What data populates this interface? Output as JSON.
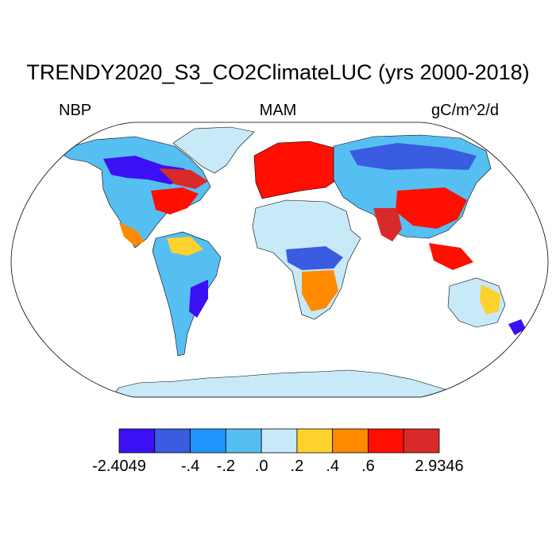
{
  "title": "TRENDY2020_S3_CO2ClimateLUC (yrs 2000-2018)",
  "variable": "NBP",
  "season": "MAM",
  "units": "gC/m^2/d",
  "colorbar": {
    "colors": [
      "#3b10f5",
      "#3a5ce0",
      "#1f96fb",
      "#55bff2",
      "#c8e9f8",
      "#fdd22c",
      "#ff8a00",
      "#ff0f00",
      "#d92a2a"
    ],
    "labels": [
      "-2.4049",
      "-.4",
      "-.2",
      ".0",
      ".2",
      ".4",
      ".6",
      "2.9346"
    ],
    "label_boundaries": [
      0,
      2,
      3,
      4,
      5,
      6,
      7,
      9
    ]
  },
  "colors": {
    "ocean": "#ffffff",
    "outline": "#000000",
    "land_base": "#c8e9f8"
  },
  "regions": [
    {
      "name": "north-america-west",
      "color": "#55bff2"
    },
    {
      "name": "canada-boreal",
      "color": "#3b10f5"
    },
    {
      "name": "us-east",
      "color": "#ff0f00"
    },
    {
      "name": "amazon",
      "color": "#55bff2"
    },
    {
      "name": "sahara",
      "color": "#c8e9f8"
    },
    {
      "name": "central-africa",
      "color": "#3a5ce0"
    },
    {
      "name": "europe",
      "color": "#ff0f00"
    },
    {
      "name": "siberia",
      "color": "#3a5ce0"
    },
    {
      "name": "east-asia",
      "color": "#ff0f00"
    },
    {
      "name": "australia",
      "color": "#c8e9f8"
    },
    {
      "name": "antarctica",
      "color": "#c8e9f8"
    },
    {
      "name": "greenland",
      "color": "#c8e9f8"
    }
  ]
}
